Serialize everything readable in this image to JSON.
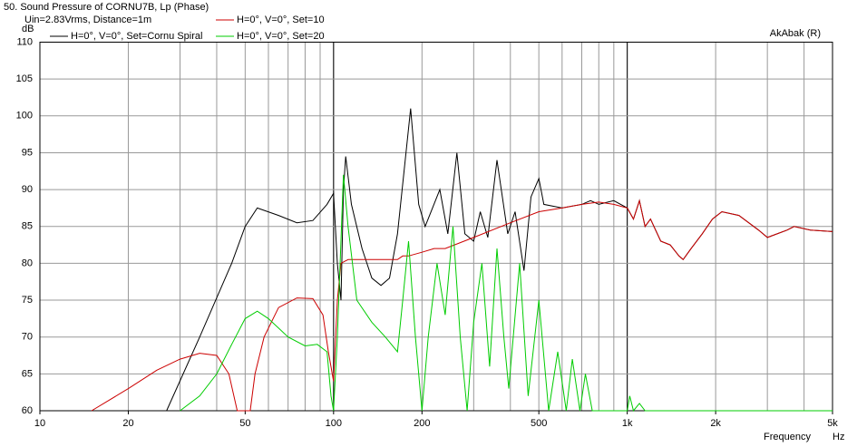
{
  "chart_data": {
    "type": "line",
    "title": "50. Sound Pressure of CORNU7B, Lp (Phase)",
    "subtitle": "Uin=2.83Vrms, Distance=1m",
    "annotation": "AkAbak (R)",
    "y_label": "dB",
    "x_label": "Frequency",
    "x_unit": "Hz",
    "log_x": true,
    "grid": true,
    "xlim": [
      10,
      5000
    ],
    "ylim": [
      60,
      110
    ],
    "yticks": [
      60,
      65,
      70,
      75,
      80,
      85,
      90,
      95,
      100,
      105,
      110
    ],
    "xticks": [
      10,
      20,
      50,
      100,
      200,
      500,
      {
        "value": 1000,
        "label": "1k"
      },
      {
        "value": 2000,
        "label": "2k"
      },
      {
        "value": 5000,
        "label": "5k"
      }
    ],
    "xgrid": [
      20,
      30,
      40,
      50,
      60,
      70,
      80,
      90,
      100,
      200,
      300,
      400,
      500,
      600,
      700,
      800,
      900,
      1000,
      2000,
      3000,
      4000
    ],
    "xgrid_major": [
      100,
      1000
    ],
    "series": [
      {
        "name": "H=0°, V=0°, Set=Cornu Spiral",
        "color": "#000000",
        "x": [
          27,
          35,
          45,
          50,
          55,
          65,
          75,
          85,
          95,
          100,
          103,
          106,
          108,
          110,
          115,
          125,
          135,
          145,
          155,
          165,
          183,
          195,
          205,
          230,
          245,
          263,
          280,
          300,
          316,
          335,
          360,
          392,
          415,
          445,
          470,
          500,
          520,
          600,
          700,
          750,
          800,
          900,
          1000,
          1050,
          1100,
          1150,
          1200,
          1300,
          1400,
          1500,
          1550,
          1650,
          1800,
          1950,
          2100,
          2400,
          2800,
          3000,
          3500,
          3700,
          4200,
          5000
        ],
        "values": [
          60,
          70,
          80,
          85,
          87.5,
          86.5,
          85.5,
          85.8,
          88,
          89.5,
          80,
          75,
          90,
          94.5,
          88,
          82,
          78,
          77,
          78,
          84,
          101,
          88,
          85,
          90,
          84,
          95,
          84,
          83,
          87,
          83.5,
          94,
          84,
          87,
          79,
          89,
          91.5,
          88,
          87.5,
          88,
          88.5,
          88,
          88.5,
          87.5,
          86,
          88.5,
          85,
          86,
          83,
          82.5,
          81,
          80.5,
          82,
          84,
          86,
          87,
          86.5,
          84.5,
          83.5,
          84.5,
          85,
          84.5,
          84.3
        ]
      },
      {
        "name": "H=0°, V=0°, Set=10",
        "color": "#cc0000",
        "x": [
          15,
          20,
          25,
          30,
          35,
          40,
          44,
          47,
          52,
          54,
          58,
          65,
          75,
          85,
          92,
          96,
          100,
          103,
          106,
          112,
          140,
          165,
          172,
          180,
          200,
          220,
          240,
          300,
          400,
          500,
          600,
          700,
          800,
          900,
          1000,
          1050,
          1100,
          1150,
          1200,
          1300,
          1400,
          1500,
          1550,
          1650,
          1800,
          1950,
          2100,
          2400,
          2800,
          3000,
          3500,
          3700,
          4200,
          5000
        ],
        "values": [
          60,
          63,
          65.5,
          67,
          67.8,
          67.5,
          65,
          60,
          60,
          65,
          70,
          74,
          75.3,
          75.2,
          73,
          68,
          64,
          75,
          80,
          80.5,
          80.5,
          80.5,
          81,
          81,
          81.5,
          82,
          82,
          83.5,
          85.5,
          87,
          87.5,
          88,
          88.3,
          88,
          87.5,
          86,
          88.5,
          85,
          86,
          83,
          82.5,
          81,
          80.5,
          82,
          84,
          86,
          87,
          86.5,
          84.5,
          83.5,
          84.5,
          85,
          84.5,
          84.3
        ]
      },
      {
        "name": "H=0°, V=0°, Set=20",
        "color": "#00cc00",
        "x": [
          30,
          35,
          40,
          45,
          50,
          55,
          60,
          70,
          80,
          88,
          95,
          98,
          100,
          103,
          108,
          112,
          120,
          135,
          150,
          165,
          172,
          180,
          190,
          200,
          210,
          225,
          240,
          255,
          270,
          285,
          300,
          320,
          340,
          360,
          380,
          395,
          430,
          460,
          500,
          540,
          580,
          620,
          650,
          690,
          720,
          760,
          1000,
          1020,
          1050,
          1100,
          1150,
          5000
        ],
        "values": [
          60,
          62,
          65,
          69,
          72.5,
          73.5,
          72.5,
          70,
          68.8,
          69,
          68,
          62,
          60,
          70,
          92,
          85,
          75,
          72,
          70,
          68,
          75,
          83,
          70,
          60,
          70,
          80,
          73,
          85,
          70,
          60,
          72,
          80,
          66,
          82,
          70,
          63,
          80,
          62,
          75,
          60,
          68,
          60,
          67,
          60,
          65,
          60,
          60,
          62,
          60,
          61,
          60,
          60
        ]
      }
    ]
  }
}
